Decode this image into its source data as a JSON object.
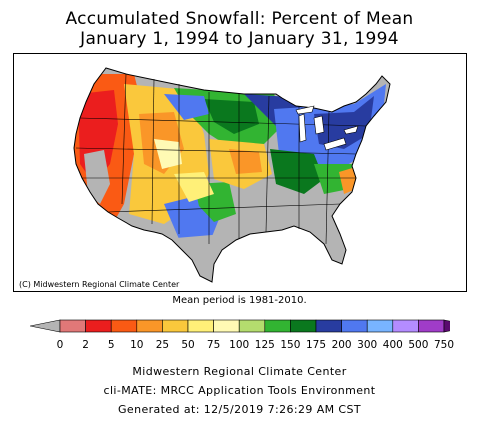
{
  "title": {
    "line1": "Accumulated Snowfall: Percent of Mean",
    "line2": "January 1, 1994 to January 31, 1994"
  },
  "map": {
    "credit": "(C) Midwestern Regional Climate Center",
    "mean_period": "Mean period is 1981-2010."
  },
  "legend": {
    "ticks": [
      "0",
      "2",
      "5",
      "10",
      "25",
      "50",
      "75",
      "100",
      "125",
      "150",
      "175",
      "200",
      "300",
      "400",
      "500",
      "750"
    ],
    "colors": [
      "#b4b4b4",
      "#e17878",
      "#eb1e1e",
      "#fa5a14",
      "#fa9628",
      "#fac83c",
      "#fff078",
      "#fffab4",
      "#b4dc6e",
      "#32b432",
      "#0a781e",
      "#283ca0",
      "#5078f0",
      "#78b4ff",
      "#b48cff",
      "#a03cc8",
      "#5a0a6e"
    ]
  },
  "footer": {
    "line1": "Midwestern Regional Climate Center",
    "line2": "cli-MATE: MRCC Application Tools Environment",
    "line3": "Generated at: 12/5/2019 7:26:29 AM CST"
  }
}
